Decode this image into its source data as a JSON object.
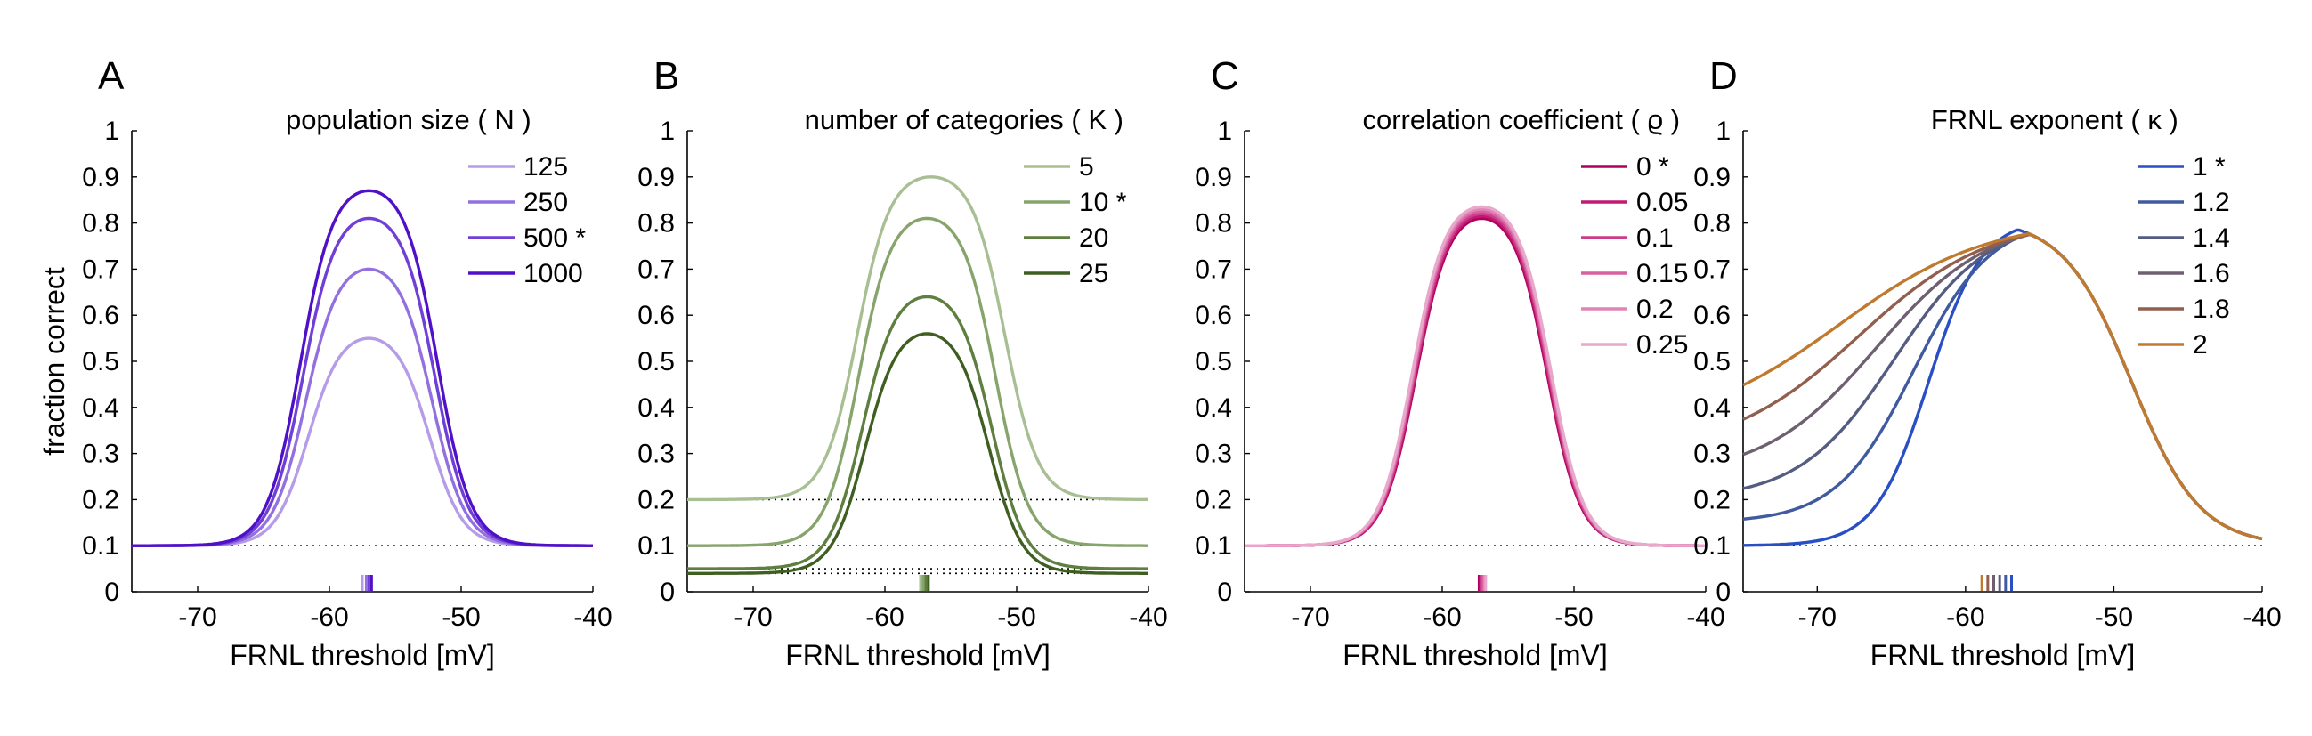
{
  "chart_data": [
    {
      "type": "line",
      "panel": "A",
      "title": "population size ( N )",
      "xlabel": "FRNL threshold [mV]",
      "ylabel": "fraction correct",
      "xlim": [
        -75,
        -40
      ],
      "ylim": [
        0,
        1
      ],
      "xticks": [
        "-70",
        "-60",
        "-50",
        "-40"
      ],
      "xtick_values": [
        -70,
        -60,
        -50,
        -40
      ],
      "yticks": [
        "0",
        "0.1",
        "0.2",
        "0.3",
        "0.4",
        "0.5",
        "0.6",
        "0.7",
        "0.8",
        "0.9",
        "1"
      ],
      "ytick_values": [
        0,
        0.1,
        0.2,
        0.3,
        0.4,
        0.5,
        0.6,
        0.7,
        0.8,
        0.9,
        1
      ],
      "legend_position": "top-right",
      "chance_levels": [
        0.1
      ],
      "series": [
        {
          "name": "125",
          "color": "#b59be8",
          "peak": 0.55,
          "center": -57.0,
          "width": 4.6,
          "baseline": 0.1
        },
        {
          "name": "250",
          "color": "#9370e0",
          "peak": 0.7,
          "center": -57.0,
          "width": 4.8,
          "baseline": 0.1
        },
        {
          "name": "500 *",
          "color": "#6f3fd6",
          "peak": 0.81,
          "center": -57.0,
          "width": 5.0,
          "baseline": 0.1
        },
        {
          "name": "1000",
          "color": "#5010c8",
          "peak": 0.87,
          "center": -57.0,
          "width": 5.2,
          "baseline": 0.1
        }
      ],
      "marker_positions": [
        -57.5,
        -57.2,
        -57.0,
        -56.8
      ]
    },
    {
      "type": "line",
      "panel": "B",
      "title": "number of categories ( K )",
      "xlabel": "FRNL threshold [mV]",
      "xlim": [
        -75,
        -40
      ],
      "ylim": [
        0,
        1
      ],
      "xticks": [
        "-70",
        "-60",
        "-50",
        "-40"
      ],
      "xtick_values": [
        -70,
        -60,
        -50,
        -40
      ],
      "yticks": [
        "0",
        "0.1",
        "0.2",
        "0.3",
        "0.4",
        "0.5",
        "0.6",
        "0.7",
        "0.8",
        "0.9",
        "1"
      ],
      "ytick_values": [
        0,
        0.1,
        0.2,
        0.3,
        0.4,
        0.5,
        0.6,
        0.7,
        0.8,
        0.9,
        1
      ],
      "legend_position": "top-right",
      "chance_levels": [
        0.2,
        0.1,
        0.05,
        0.04
      ],
      "series": [
        {
          "name": "5",
          "color": "#a8bf94",
          "peak": 0.9,
          "center": -56.5,
          "width": 5.6,
          "baseline": 0.2
        },
        {
          "name": "10 *",
          "color": "#86a46c",
          "peak": 0.81,
          "center": -56.8,
          "width": 5.2,
          "baseline": 0.1
        },
        {
          "name": "20",
          "color": "#5e7f3f",
          "peak": 0.64,
          "center": -56.8,
          "width": 4.9,
          "baseline": 0.05
        },
        {
          "name": "25",
          "color": "#3f5f22",
          "peak": 0.56,
          "center": -56.8,
          "width": 4.7,
          "baseline": 0.04
        }
      ],
      "marker_positions": [
        -57.3,
        -57.1,
        -56.9,
        -56.7
      ]
    },
    {
      "type": "line",
      "panel": "C",
      "title": "correlation coefficient ( ϱ )",
      "xlabel": "FRNL threshold [mV]",
      "xlim": [
        -75,
        -40
      ],
      "ylim": [
        0,
        1
      ],
      "xticks": [
        "-70",
        "-60",
        "-50",
        "-40"
      ],
      "xtick_values": [
        -70,
        -60,
        -50,
        -40
      ],
      "yticks": [
        "0",
        "0.1",
        "0.2",
        "0.3",
        "0.4",
        "0.5",
        "0.6",
        "0.7",
        "0.8",
        "0.9",
        "1"
      ],
      "ytick_values": [
        0,
        0.1,
        0.2,
        0.3,
        0.4,
        0.5,
        0.6,
        0.7,
        0.8,
        0.9,
        1
      ],
      "legend_position": "top-right",
      "chance_levels": [
        0.1
      ],
      "series": [
        {
          "name": "0 *",
          "color": "#b0005e",
          "peak": 0.81,
          "center": -57.0,
          "width": 5.0,
          "baseline": 0.1
        },
        {
          "name": "0.05",
          "color": "#c01a72",
          "peak": 0.815,
          "center": -57.0,
          "width": 5.05,
          "baseline": 0.1
        },
        {
          "name": "0.1",
          "color": "#cc3c88",
          "peak": 0.82,
          "center": -57.0,
          "width": 5.1,
          "baseline": 0.1
        },
        {
          "name": "0.15",
          "color": "#d8609e",
          "peak": 0.825,
          "center": -57.0,
          "width": 5.15,
          "baseline": 0.1
        },
        {
          "name": "0.2",
          "color": "#e084b6",
          "peak": 0.83,
          "center": -57.0,
          "width": 5.2,
          "baseline": 0.1
        },
        {
          "name": "0.25",
          "color": "#e8a8cc",
          "peak": 0.835,
          "center": -57.0,
          "width": 5.25,
          "baseline": 0.1
        }
      ],
      "marker_positions": [
        -57.2,
        -57.1,
        -57.0,
        -56.9,
        -56.8,
        -56.7
      ]
    },
    {
      "type": "line",
      "panel": "D",
      "title": "FRNL exponent ( κ )",
      "xlabel": "FRNL threshold [mV]",
      "xlim": [
        -75,
        -40
      ],
      "ylim": [
        0,
        1
      ],
      "xticks": [
        "-70",
        "-60",
        "-50",
        "-40"
      ],
      "xtick_values": [
        -70,
        -60,
        -50,
        -40
      ],
      "yticks": [
        "0",
        "0.1",
        "0.2",
        "0.3",
        "0.4",
        "0.5",
        "0.6",
        "0.7",
        "0.8",
        "0.9",
        "1"
      ],
      "ytick_values": [
        0,
        0.1,
        0.2,
        0.3,
        0.4,
        0.5,
        0.6,
        0.7,
        0.8,
        0.9,
        1
      ],
      "legend_position": "top-right",
      "chance_levels": [
        0.1
      ],
      "series": [
        {
          "name": "1 *",
          "color": "#2a4fc4",
          "left_mid": -62.5,
          "left_width": 1.8,
          "left_value": 0.1,
          "peak": 0.81,
          "peak_x": -57.0
        },
        {
          "name": "1.2",
          "color": "#3f5a9e",
          "left_mid": -63.5,
          "left_width": 2.6,
          "left_value": 0.15,
          "peak": 0.81,
          "peak_x": -57.5
        },
        {
          "name": "1.4",
          "color": "#555c82",
          "left_mid": -64.8,
          "left_width": 3.2,
          "left_value": 0.2,
          "peak": 0.81,
          "peak_x": -58.0
        },
        {
          "name": "1.6",
          "color": "#6e6070",
          "left_mid": -66.0,
          "left_width": 3.8,
          "left_value": 0.25,
          "peak": 0.81,
          "peak_x": -58.5
        },
        {
          "name": "1.8",
          "color": "#925f4e",
          "left_mid": -67.2,
          "left_width": 4.4,
          "left_value": 0.3,
          "peak": 0.81,
          "peak_x": -59.0
        },
        {
          "name": "2",
          "color": "#c07a30",
          "left_mid": -68.5,
          "left_width": 5.0,
          "left_value": 0.35,
          "peak": 0.81,
          "peak_x": -59.5
        }
      ],
      "right_mid": -48.8,
      "right_width": 2.3,
      "right_value": 0.1,
      "marker_positions": [
        -56.9,
        -57.3,
        -57.7,
        -58.1,
        -58.5,
        -58.9
      ]
    }
  ]
}
